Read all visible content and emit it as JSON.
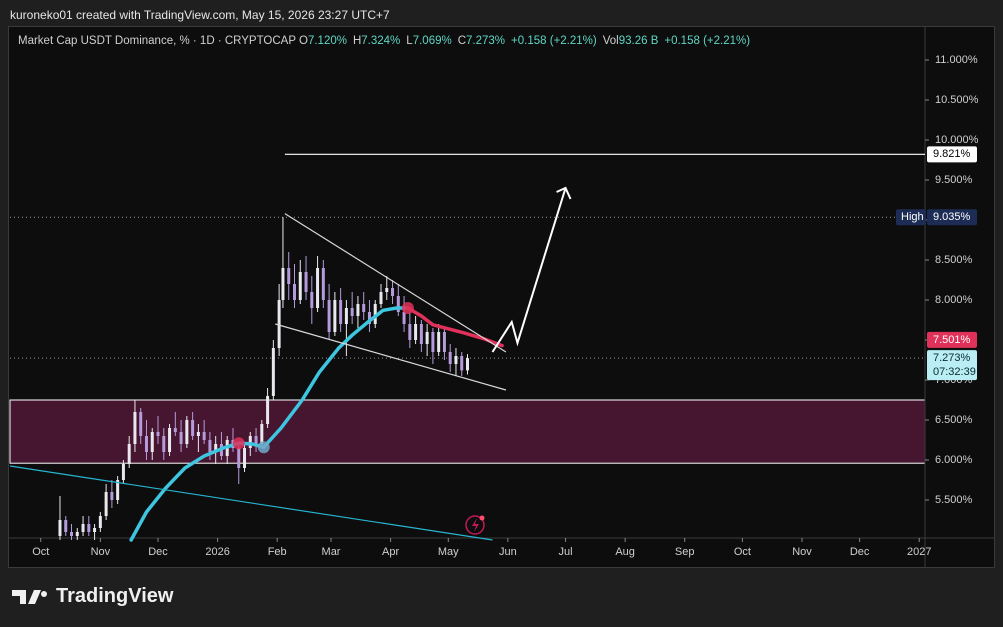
{
  "header": "kuroneko01 created with TradingView.com, May 15, 2026 23:27 UTC+7",
  "footer_logo": "TradingView",
  "chart_data": {
    "type": "candlestick",
    "title": "Market Cap USDT Dominance, % · 1D · CRYPTOCAP",
    "legend_values": [
      {
        "label": "O",
        "value": "7.120%"
      },
      {
        "label": "H",
        "value": "7.324%"
      },
      {
        "label": "L",
        "value": "7.069%"
      },
      {
        "label": "C",
        "value": "7.273%"
      },
      {
        "label": "",
        "value": "+0.158 (+2.21%)"
      },
      {
        "label": "Vol",
        "value": "93.26 B"
      },
      {
        "label": "",
        "value": "+0.158 (+2.21%)"
      }
    ],
    "up_color": "#e8e8ee",
    "down_color": "#b59bdc",
    "x": [
      10,
      13,
      16,
      19,
      22,
      25,
      28,
      31,
      34,
      37,
      40,
      43,
      46,
      49,
      52,
      55,
      58,
      61,
      64,
      67,
      70,
      73,
      76,
      79,
      82,
      85,
      88,
      91,
      94,
      97,
      100,
      103,
      106,
      109,
      112,
      115,
      118,
      121,
      124,
      126,
      129,
      132,
      135,
      138,
      141,
      144,
      147,
      150,
      153,
      156,
      159,
      162,
      165,
      168,
      171,
      174,
      177,
      180,
      183,
      186,
      189,
      192,
      195,
      198,
      201,
      204,
      207,
      210,
      213,
      216,
      219,
      222
    ],
    "open": [
      5.05,
      5.25,
      5.1,
      5.05,
      5.1,
      5.2,
      5.1,
      5.15,
      5.3,
      5.6,
      5.5,
      5.75,
      5.95,
      6.2,
      6.6,
      6.3,
      6.1,
      6.35,
      6.3,
      6.1,
      6.4,
      6.35,
      6.2,
      6.5,
      6.3,
      6.35,
      6.25,
      6.1,
      6.2,
      6.05,
      6.25,
      6.15,
      5.9,
      6.15,
      6.3,
      6.2,
      6.45,
      6.8,
      7.4,
      8.0,
      8.4,
      8.2,
      8.0,
      8.35,
      8.1,
      7.9,
      8.4,
      8.0,
      7.6,
      8.0,
      7.7,
      7.9,
      7.8,
      7.95,
      7.85,
      7.7,
      7.95,
      8.1,
      8.15,
      8.05,
      7.85,
      7.7,
      7.5,
      7.7,
      7.45,
      7.6,
      7.35,
      7.6,
      7.35,
      7.2,
      7.3,
      7.12
    ],
    "high": [
      5.55,
      5.3,
      5.2,
      5.15,
      5.3,
      5.3,
      5.2,
      5.35,
      5.7,
      5.75,
      5.8,
      6.0,
      6.3,
      6.75,
      6.65,
      6.5,
      6.4,
      6.55,
      6.4,
      6.45,
      6.6,
      6.5,
      6.55,
      6.6,
      6.45,
      6.5,
      6.35,
      6.3,
      6.35,
      6.3,
      6.4,
      6.2,
      6.2,
      6.35,
      6.4,
      6.5,
      6.9,
      7.5,
      8.2,
      9.035,
      8.6,
      8.45,
      8.5,
      8.55,
      8.3,
      8.55,
      8.5,
      8.2,
      8.1,
      8.15,
      8.0,
      8.1,
      8.05,
      8.1,
      8.0,
      8.0,
      8.2,
      8.3,
      8.25,
      8.2,
      8.05,
      7.85,
      7.8,
      7.75,
      7.7,
      7.65,
      7.7,
      7.65,
      7.45,
      7.4,
      7.35,
      7.324
    ],
    "low": [
      5.0,
      5.05,
      5.0,
      5.0,
      5.05,
      5.05,
      5.0,
      5.1,
      5.25,
      5.4,
      5.45,
      5.7,
      5.9,
      6.1,
      6.2,
      6.0,
      6.0,
      6.2,
      6.0,
      6.05,
      6.3,
      6.1,
      6.15,
      6.25,
      6.1,
      6.2,
      6.0,
      5.95,
      6.0,
      5.95,
      6.1,
      5.7,
      5.85,
      6.05,
      6.1,
      6.15,
      6.4,
      6.75,
      7.3,
      7.9,
      8.0,
      7.9,
      7.95,
      8.0,
      7.7,
      7.85,
      7.9,
      7.5,
      7.55,
      7.6,
      7.3,
      7.7,
      7.65,
      7.75,
      7.6,
      7.65,
      7.9,
      8.0,
      7.95,
      7.8,
      7.6,
      7.4,
      7.45,
      7.35,
      7.3,
      7.2,
      7.3,
      7.25,
      7.1,
      7.05,
      7.05,
      7.069
    ],
    "close": [
      5.25,
      5.1,
      5.05,
      5.1,
      5.2,
      5.1,
      5.15,
      5.3,
      5.6,
      5.5,
      5.75,
      5.95,
      6.2,
      6.6,
      6.3,
      6.1,
      6.35,
      6.3,
      6.1,
      6.4,
      6.35,
      6.2,
      6.5,
      6.3,
      6.35,
      6.25,
      6.1,
      6.2,
      6.05,
      6.25,
      6.15,
      5.9,
      6.15,
      6.3,
      6.2,
      6.45,
      6.8,
      7.4,
      8.0,
      8.4,
      8.2,
      8.0,
      8.35,
      8.1,
      7.9,
      8.4,
      8.0,
      7.6,
      8.0,
      7.7,
      7.9,
      7.8,
      7.95,
      7.85,
      7.7,
      7.95,
      8.1,
      8.15,
      8.05,
      7.85,
      7.7,
      7.5,
      7.7,
      7.45,
      7.6,
      7.35,
      7.6,
      7.35,
      7.2,
      7.3,
      7.12,
      7.273
    ],
    "xlim": [
      -16,
      460
    ],
    "xticks": [
      {
        "value": 0,
        "label": "Oct"
      },
      {
        "value": 31,
        "label": "Nov"
      },
      {
        "value": 61,
        "label": "Dec"
      },
      {
        "value": 92,
        "label": "2026"
      },
      {
        "value": 123,
        "label": "Feb"
      },
      {
        "value": 151,
        "label": "Mar"
      },
      {
        "value": 182,
        "label": "Apr"
      },
      {
        "value": 212,
        "label": "May"
      },
      {
        "value": 243,
        "label": "Jun"
      },
      {
        "value": 273,
        "label": "Jul"
      },
      {
        "value": 304,
        "label": "Aug"
      },
      {
        "value": 335,
        "label": "Sep"
      },
      {
        "value": 365,
        "label": "Oct"
      },
      {
        "value": 396,
        "label": "Nov"
      },
      {
        "value": 426,
        "label": "Dec"
      },
      {
        "value": 457,
        "label": "2027"
      }
    ],
    "ylim": [
      5.025,
      11.4
    ],
    "yticks": [
      {
        "value": 5.5,
        "label": "5.500%"
      },
      {
        "value": 6,
        "label": "6.000%"
      },
      {
        "value": 6.5,
        "label": "6.500%"
      },
      {
        "value": 7,
        "label": "7.000%"
      },
      {
        "value": 7.5,
        "label": "7.500%"
      },
      {
        "value": 8,
        "label": "8.000%"
      },
      {
        "value": 8.5,
        "label": "8.500%"
      },
      {
        "value": 9,
        "label": "9.000%"
      },
      {
        "value": 9.5,
        "label": "9.500%"
      },
      {
        "value": 10,
        "label": "10.000%"
      },
      {
        "value": 10.5,
        "label": "10.500%"
      },
      {
        "value": 11,
        "label": "11.000%"
      }
    ],
    "moving_average": [
      {
        "color": "#3ec6e0",
        "x": [
          47,
          55,
          65,
          75,
          85,
          95,
          103,
          110,
          116,
          125,
          136,
          145,
          155,
          162,
          170,
          178,
          185,
          191
        ],
        "values": [
          5.0,
          5.35,
          5.65,
          5.9,
          6.05,
          6.15,
          6.21,
          6.2,
          6.16,
          6.4,
          6.75,
          7.1,
          7.4,
          7.56,
          7.72,
          7.87,
          7.9,
          7.9
        ]
      },
      {
        "color": "#e0315a",
        "x": [
          191,
          198,
          204,
          212,
          220,
          230,
          240
        ],
        "values": [
          7.9,
          7.8,
          7.69,
          7.64,
          7.59,
          7.52,
          7.43
        ]
      }
    ],
    "signals": [
      {
        "x": 103,
        "value": 6.21,
        "color": "#e0315a"
      },
      {
        "x": 116,
        "value": 6.16,
        "color": "#6fa8c8"
      },
      {
        "x": 191,
        "value": 7.9,
        "color": "#e0315a"
      }
    ],
    "zone": {
      "values": [
        5.96,
        6.75
      ],
      "color": "#5a1a3c"
    },
    "drawings": [
      {
        "color": "#ffffff",
        "x": [
          127,
          460
        ],
        "values": [
          9.821,
          9.821
        ]
      },
      {
        "color": "#d8d8d8",
        "x": [
          127,
          242
        ],
        "values": [
          9.08,
          7.35
        ]
      },
      {
        "color": "#d8d8d8",
        "x": [
          122,
          242
        ],
        "values": [
          7.7,
          6.875
        ]
      },
      {
        "color": "#27b5d0",
        "x": [
          -16,
          235
        ],
        "values": [
          5.925,
          5.0
        ]
      },
      {
        "color": "#ffffff",
        "x": [
          235,
          245,
          248,
          273
        ],
        "values": [
          7.35,
          7.725,
          7.463,
          9.4
        ]
      }
    ],
    "price_labels": [
      {
        "value": 9.821,
        "label": "9.821%",
        "bg": "#ffffff",
        "fg": "#000000"
      },
      {
        "value": 9.035,
        "label": "9.035%",
        "tag": "High",
        "bg": "#1c2c55",
        "fg": "#ffffff"
      },
      {
        "value": 7.501,
        "label": "7.501%",
        "bg": "#e0315a",
        "fg": "#ffffff"
      },
      {
        "value": 7.273,
        "label": "7.273%",
        "countdown": "07:32:39",
        "bg": "#b9eef5",
        "fg": "#0a2a33"
      }
    ]
  }
}
